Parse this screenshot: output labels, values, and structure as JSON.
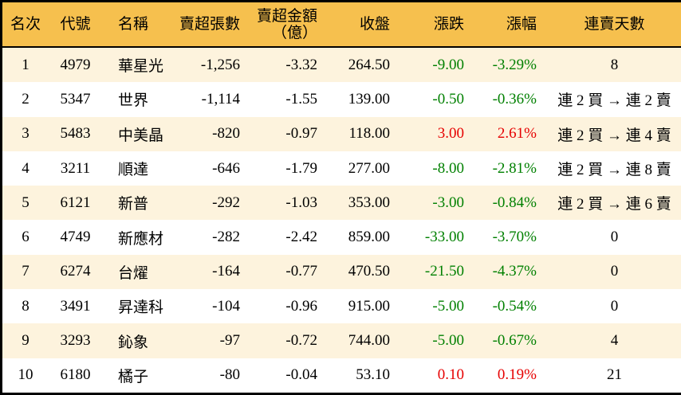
{
  "chart_data": {
    "type": "table",
    "columns": [
      {
        "key": "rank",
        "label": "名次"
      },
      {
        "key": "code",
        "label": "代號"
      },
      {
        "key": "name",
        "label": "名稱"
      },
      {
        "key": "sell_volume",
        "label": "賣超張數"
      },
      {
        "key": "sell_amount",
        "label": "賣超金額",
        "label2": "（億）"
      },
      {
        "key": "close",
        "label": "收盤"
      },
      {
        "key": "change",
        "label": "漲跌"
      },
      {
        "key": "change_pct",
        "label": "漲幅"
      },
      {
        "key": "streak",
        "label": "連賣天數"
      }
    ],
    "rows": [
      {
        "rank": "1",
        "code": "4979",
        "name": "華星光",
        "sell_volume": "-1,256",
        "sell_amount": "-3.32",
        "close": "264.50",
        "change": "-9.00",
        "change_pct": "-3.29%",
        "streak": "8",
        "trend": "down"
      },
      {
        "rank": "2",
        "code": "5347",
        "name": "世界",
        "sell_volume": "-1,114",
        "sell_amount": "-1.55",
        "close": "139.00",
        "change": "-0.50",
        "change_pct": "-0.36%",
        "streak": "連 2 買 → 連 2 賣",
        "trend": "down"
      },
      {
        "rank": "3",
        "code": "5483",
        "name": "中美晶",
        "sell_volume": "-820",
        "sell_amount": "-0.97",
        "close": "118.00",
        "change": "3.00",
        "change_pct": "2.61%",
        "streak": "連 2 買 → 連 4 賣",
        "trend": "up"
      },
      {
        "rank": "4",
        "code": "3211",
        "name": "順達",
        "sell_volume": "-646",
        "sell_amount": "-1.79",
        "close": "277.00",
        "change": "-8.00",
        "change_pct": "-2.81%",
        "streak": "連 2 買 → 連 8 賣",
        "trend": "down"
      },
      {
        "rank": "5",
        "code": "6121",
        "name": "新普",
        "sell_volume": "-292",
        "sell_amount": "-1.03",
        "close": "353.00",
        "change": "-3.00",
        "change_pct": "-0.84%",
        "streak": "連 2 買 → 連 6 賣",
        "trend": "down"
      },
      {
        "rank": "6",
        "code": "4749",
        "name": "新應材",
        "sell_volume": "-282",
        "sell_amount": "-2.42",
        "close": "859.00",
        "change": "-33.00",
        "change_pct": "-3.70%",
        "streak": "0",
        "trend": "down"
      },
      {
        "rank": "7",
        "code": "6274",
        "name": "台燿",
        "sell_volume": "-164",
        "sell_amount": "-0.77",
        "close": "470.50",
        "change": "-21.50",
        "change_pct": "-4.37%",
        "streak": "0",
        "trend": "down"
      },
      {
        "rank": "8",
        "code": "3491",
        "name": "昇達科",
        "sell_volume": "-104",
        "sell_amount": "-0.96",
        "close": "915.00",
        "change": "-5.00",
        "change_pct": "-0.54%",
        "streak": "0",
        "trend": "down"
      },
      {
        "rank": "9",
        "code": "3293",
        "name": "鈊象",
        "sell_volume": "-97",
        "sell_amount": "-0.72",
        "close": "744.00",
        "change": "-5.00",
        "change_pct": "-0.67%",
        "streak": "4",
        "trend": "down"
      },
      {
        "rank": "10",
        "code": "6180",
        "name": "橘子",
        "sell_volume": "-80",
        "sell_amount": "-0.04",
        "close": "53.10",
        "change": "0.10",
        "change_pct": "0.19%",
        "streak": "21",
        "trend": "up"
      }
    ]
  },
  "colors": {
    "header_bg": "#f6c04e",
    "row_alt_bg": "#fdf3dd",
    "row_bg": "#ffffff",
    "up_red": "#e60000",
    "down_green": "#008000",
    "border": "#000000",
    "text": "#000000"
  }
}
